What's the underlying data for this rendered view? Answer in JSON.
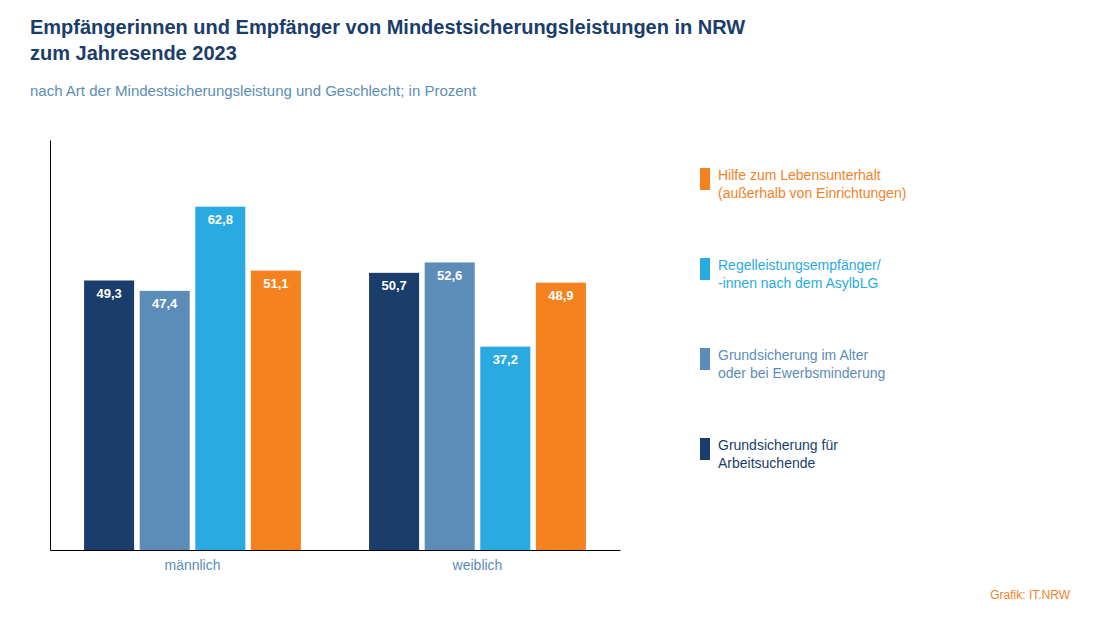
{
  "chart_data": {
    "type": "bar",
    "title": "Empfängerinnen und Empfänger von Mindestsicherungsleistungen in NRW\nzum Jahresende 2023",
    "subtitle": "nach Art der Mindestsicherungsleistung und Geschlecht; in Prozent",
    "categories": [
      "männlich",
      "weiblich"
    ],
    "series": [
      {
        "name": "Grundsicherung für\nArbeitsuchende",
        "color": "#1a3d6b",
        "values": [
          49.3,
          50.7
        ],
        "value_labels": [
          "49,3",
          "50,7"
        ]
      },
      {
        "name": "Grundsicherung im Alter\noder bei Ewerbsminderung",
        "color": "#5b8db8",
        "values": [
          47.4,
          52.6
        ],
        "value_labels": [
          "47,4",
          "52,6"
        ]
      },
      {
        "name": "Regelleistungsempfänger/\n-innen nach dem AsylbLG",
        "color": "#29abe2",
        "values": [
          62.8,
          37.2
        ],
        "value_labels": [
          "62,8",
          "37,2"
        ]
      },
      {
        "name": "Hilfe zum Lebensunterhalt\n(außerhalb von Einrichtungen)",
        "color": "#f5821f",
        "values": [
          51.1,
          48.9
        ],
        "value_labels": [
          "51,1",
          "48,9"
        ]
      }
    ],
    "ylim": [
      0,
      75
    ],
    "tick_labels": "x",
    "grid": false,
    "legend": "right",
    "data_labels": true,
    "annotations": [
      "Grafik: IT.NRW"
    ]
  }
}
